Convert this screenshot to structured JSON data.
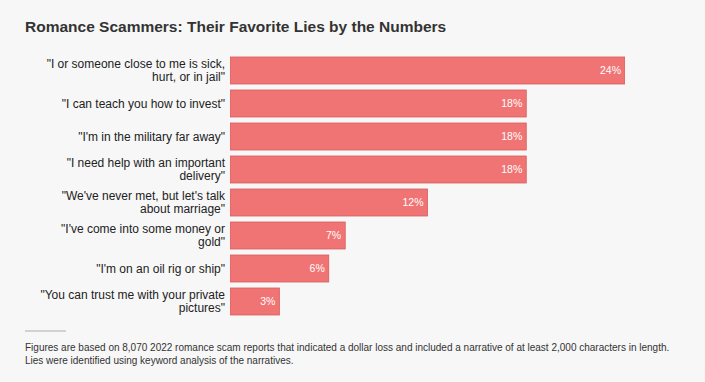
{
  "chart_data": {
    "type": "bar",
    "orientation": "horizontal",
    "title": "Romance Scammers: Their Favorite Lies by the Numbers",
    "categories": [
      "\"I or someone close to me is sick, hurt, or in jail\"",
      "\"I can teach you how to invest\"",
      "\"I'm in the military far away\"",
      "\"I need help with an important delivery\"",
      "\"We've never met, but let's talk about marriage\"",
      "\"I've come into some money or gold\"",
      "\"I'm on an oil rig or ship\"",
      "\"You can trust me with your private pictures\""
    ],
    "values": [
      24,
      18,
      18,
      18,
      12,
      7,
      6,
      3
    ],
    "value_labels": [
      "24%",
      "18%",
      "18%",
      "18%",
      "12%",
      "7%",
      "6%",
      "3%"
    ],
    "data_labels": true,
    "color": "#f07474",
    "xlim": [
      0,
      24
    ],
    "grid": false,
    "tick_labels": "y",
    "annotations": [
      "Figures are based on 8,070 2022 romance scam reports that indicated a dollar loss and included a narrative of at least 2,000 characters in length.",
      "Lies were identified using keyword analysis of the narratives."
    ]
  }
}
